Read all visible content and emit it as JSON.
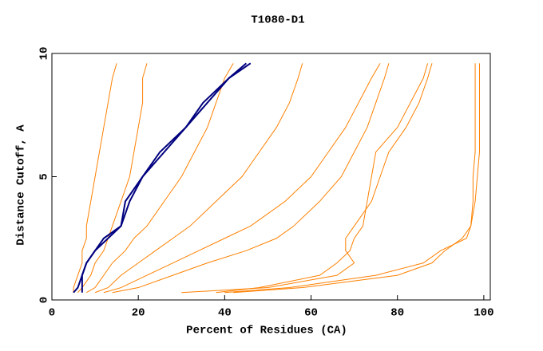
{
  "chart_data": {
    "type": "line",
    "title": "T1080-D1",
    "x_label": "Percent of Residues (CA)",
    "y_label": "Distance Cutoff, A",
    "xlim": [
      0,
      101.5
    ],
    "xticks": [
      0,
      20,
      40,
      60,
      80,
      100
    ],
    "ylim": [
      0,
      10
    ],
    "yticks": [
      0,
      5,
      10
    ],
    "series": [
      {
        "color": "#ff8000",
        "x": [
          5,
          5,
          6,
          7,
          7,
          8,
          8,
          9,
          10,
          11,
          12,
          13,
          14,
          15
        ],
        "values": [
          0.3,
          0.5,
          1,
          1.5,
          2,
          2.5,
          3,
          4,
          5,
          6,
          7,
          8,
          9,
          9.6
        ]
      },
      {
        "color": "#ff8000",
        "x": [
          6,
          7,
          9,
          10,
          12,
          13,
          14,
          16,
          18,
          19,
          20,
          21,
          21,
          22
        ],
        "values": [
          0.3,
          0.5,
          1,
          1.5,
          2,
          2.5,
          3,
          4,
          5,
          6,
          7,
          8,
          9,
          9.6
        ]
      },
      {
        "color": "#ff8000",
        "x": [
          8,
          10,
          12,
          14,
          17,
          19,
          22,
          26,
          30,
          33,
          36,
          38,
          40,
          42
        ],
        "values": [
          0.3,
          0.5,
          1,
          1.5,
          2,
          2.5,
          3,
          4,
          5,
          6,
          7,
          8,
          9,
          9.6
        ]
      },
      {
        "color": "#ff8000",
        "x": [
          10,
          13,
          16,
          20,
          24,
          28,
          32,
          38,
          44,
          48,
          52,
          55,
          57,
          58
        ],
        "values": [
          0.3,
          0.5,
          1,
          1.5,
          2,
          2.5,
          3,
          4,
          5,
          6,
          7,
          8,
          9,
          9.6
        ]
      },
      {
        "color": "#ff8000",
        "x": [
          12,
          16,
          22,
          28,
          34,
          40,
          46,
          54,
          60,
          64,
          68,
          71,
          74,
          76
        ],
        "values": [
          0.3,
          0.5,
          1,
          1.5,
          2,
          2.5,
          3,
          4,
          5,
          6,
          7,
          8,
          9,
          9.6
        ]
      },
      {
        "color": "#ff8000",
        "x": [
          14,
          20,
          28,
          36,
          45,
          52,
          56,
          62,
          67,
          70,
          73,
          75,
          77,
          78
        ],
        "values": [
          0.3,
          0.5,
          1,
          1.5,
          2,
          2.5,
          3,
          4,
          5,
          6,
          7,
          8,
          9,
          9.6
        ]
      },
      {
        "color": "#ff8000",
        "x": [
          30,
          50,
          66,
          70,
          68,
          68,
          70,
          74,
          76,
          78,
          82,
          85,
          87,
          88
        ],
        "values": [
          0.3,
          0.5,
          1,
          1.5,
          2,
          2.5,
          3,
          4,
          5,
          6,
          7,
          8,
          9,
          9.6
        ]
      },
      {
        "color": "#ff8000",
        "x": [
          38,
          48,
          62,
          66,
          69,
          70,
          72,
          73,
          74,
          75,
          80,
          83,
          86,
          87
        ],
        "values": [
          0.3,
          0.5,
          1,
          1.5,
          2,
          2.5,
          3,
          4,
          5,
          6,
          7,
          8,
          9,
          9.6
        ]
      },
      {
        "color": "#ff8000",
        "x": [
          40,
          55,
          75,
          86,
          90,
          96,
          97,
          97.5,
          97.5,
          98,
          98,
          98,
          98,
          98
        ],
        "values": [
          0.3,
          0.5,
          1,
          1.5,
          2,
          2.5,
          3,
          4,
          5,
          6,
          7,
          8,
          9,
          9.6
        ]
      },
      {
        "color": "#ff8000",
        "x": [
          42,
          58,
          80,
          88,
          91,
          95,
          97,
          98,
          98.5,
          99,
          99,
          99,
          99,
          99
        ],
        "values": [
          0.3,
          0.5,
          1,
          1.5,
          2,
          2.5,
          3,
          4,
          5,
          6,
          7,
          8,
          9,
          9.6
        ]
      },
      {
        "color": "#00007f",
        "x": [
          7,
          7,
          7,
          8,
          10,
          13,
          16,
          18,
          21,
          26,
          31,
          36,
          41,
          45
        ],
        "values": [
          0.3,
          0.5,
          1,
          1.5,
          2,
          2.5,
          3,
          4,
          5,
          6,
          7,
          8,
          9,
          9.6
        ]
      },
      {
        "color": "#00007f",
        "x": [
          5,
          6,
          7,
          8,
          10,
          12,
          16,
          17,
          21,
          25,
          31,
          35,
          41,
          46
        ],
        "values": [
          0.3,
          0.5,
          1,
          1.5,
          2,
          2.5,
          3,
          4,
          5,
          6,
          7,
          8,
          9,
          9.6
        ]
      }
    ]
  }
}
